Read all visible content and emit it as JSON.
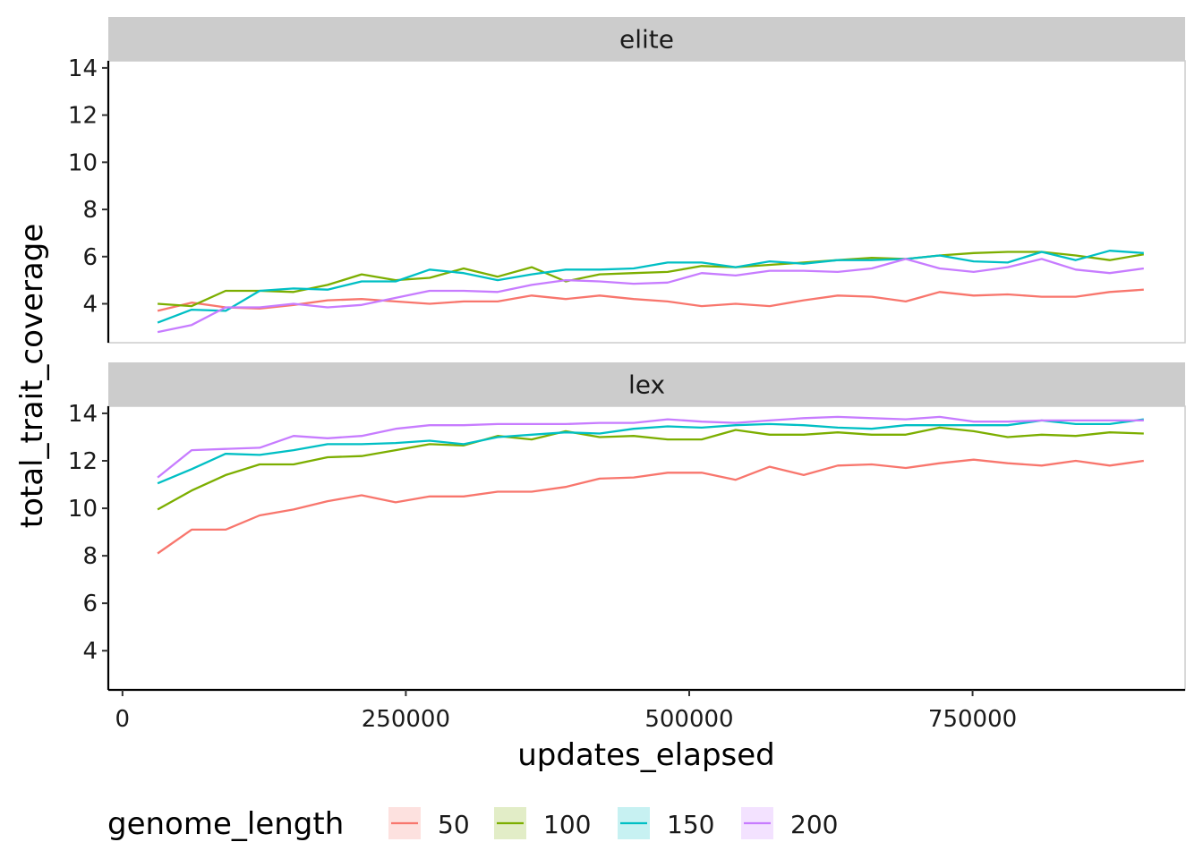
{
  "chart_data": {
    "type": "line",
    "facets": [
      "elite",
      "lex"
    ],
    "xlabel": "updates_elapsed",
    "ylabel": "total_trait_coverage",
    "x_ticks": [
      0,
      250000,
      500000,
      750000
    ],
    "x_tick_labels": [
      "0",
      "250000",
      "500000",
      "750000"
    ],
    "y_ticks": [
      4,
      6,
      8,
      10,
      12,
      14
    ],
    "y_tick_labels": [
      "4",
      "6",
      "8",
      "10",
      "12",
      "14"
    ],
    "xlim": [
      -12500,
      937500
    ],
    "ylim": [
      2.35,
      14.3
    ],
    "grid": false,
    "legend": {
      "title": "genome_length",
      "position": "bottom",
      "entries": [
        "50",
        "100",
        "150",
        "200"
      ]
    },
    "x": [
      31000,
      61000,
      91000,
      121000,
      151000,
      181000,
      211000,
      241000,
      271000,
      301000,
      331000,
      361000,
      391000,
      421000,
      451000,
      481000,
      511000,
      541000,
      571000,
      601000,
      631000,
      661000,
      691000,
      721000,
      751000,
      781000,
      811000,
      841000,
      871000,
      901000
    ],
    "panels": [
      {
        "facet": "elite",
        "series": [
          {
            "name": "50",
            "color": "#F8766D",
            "values": [
              3.7,
              4.05,
              3.85,
              3.8,
              3.95,
              4.15,
              4.2,
              4.1,
              4.0,
              4.1,
              4.1,
              4.35,
              4.2,
              4.35,
              4.2,
              4.1,
              3.9,
              4.0,
              3.9,
              4.15,
              4.35,
              4.3,
              4.1,
              4.5,
              4.35,
              4.4,
              4.3,
              4.3,
              4.5,
              4.6
            ]
          },
          {
            "name": "100",
            "color": "#7CAE00",
            "values": [
              4.0,
              3.9,
              4.55,
              4.55,
              4.5,
              4.8,
              5.25,
              5.0,
              5.1,
              5.5,
              5.15,
              5.55,
              4.95,
              5.25,
              5.3,
              5.35,
              5.6,
              5.55,
              5.65,
              5.75,
              5.85,
              5.95,
              5.9,
              6.05,
              6.15,
              6.2,
              6.2,
              6.05,
              5.85,
              6.1
            ]
          },
          {
            "name": "150",
            "color": "#00BFC4",
            "values": [
              3.2,
              3.75,
              3.7,
              4.55,
              4.65,
              4.6,
              4.95,
              4.95,
              5.45,
              5.3,
              5.0,
              5.25,
              5.45,
              5.45,
              5.5,
              5.75,
              5.75,
              5.55,
              5.8,
              5.7,
              5.85,
              5.85,
              5.9,
              6.05,
              5.8,
              5.75,
              6.2,
              5.85,
              6.25,
              6.15
            ]
          },
          {
            "name": "200",
            "color": "#C77CFF",
            "values": [
              2.8,
              3.1,
              3.85,
              3.85,
              4.0,
              3.85,
              3.95,
              4.25,
              4.55,
              4.55,
              4.5,
              4.8,
              5.0,
              4.95,
              4.85,
              4.9,
              5.3,
              5.2,
              5.4,
              5.4,
              5.35,
              5.5,
              5.9,
              5.5,
              5.35,
              5.55,
              5.9,
              5.45,
              5.3,
              5.5
            ]
          }
        ]
      },
      {
        "facet": "lex",
        "series": [
          {
            "name": "50",
            "color": "#F8766D",
            "values": [
              8.1,
              9.1,
              9.1,
              9.7,
              9.95,
              10.3,
              10.55,
              10.25,
              10.5,
              10.5,
              10.7,
              10.7,
              10.9,
              11.25,
              11.3,
              11.5,
              11.5,
              11.2,
              11.75,
              11.4,
              11.8,
              11.85,
              11.7,
              11.9,
              12.05,
              11.9,
              11.8,
              12.0,
              11.8,
              12.0
            ]
          },
          {
            "name": "100",
            "color": "#7CAE00",
            "values": [
              9.95,
              10.75,
              11.4,
              11.85,
              11.85,
              12.15,
              12.2,
              12.45,
              12.7,
              12.65,
              13.05,
              12.9,
              13.25,
              13.0,
              13.05,
              12.9,
              12.9,
              13.3,
              13.1,
              13.1,
              13.2,
              13.1,
              13.1,
              13.4,
              13.25,
              13.0,
              13.1,
              13.05,
              13.2,
              13.15
            ]
          },
          {
            "name": "150",
            "color": "#00BFC4",
            "values": [
              11.05,
              11.65,
              12.3,
              12.25,
              12.45,
              12.7,
              12.7,
              12.75,
              12.85,
              12.7,
              13.0,
              13.1,
              13.2,
              13.15,
              13.35,
              13.45,
              13.4,
              13.5,
              13.55,
              13.5,
              13.4,
              13.35,
              13.5,
              13.5,
              13.5,
              13.5,
              13.7,
              13.55,
              13.55,
              13.75
            ]
          },
          {
            "name": "200",
            "color": "#C77CFF",
            "values": [
              11.3,
              12.45,
              12.5,
              12.55,
              13.05,
              12.95,
              13.05,
              13.35,
              13.5,
              13.5,
              13.55,
              13.55,
              13.55,
              13.6,
              13.6,
              13.75,
              13.65,
              13.6,
              13.7,
              13.8,
              13.85,
              13.8,
              13.75,
              13.85,
              13.65,
              13.65,
              13.7,
              13.7,
              13.7,
              13.7
            ]
          }
        ]
      }
    ]
  }
}
